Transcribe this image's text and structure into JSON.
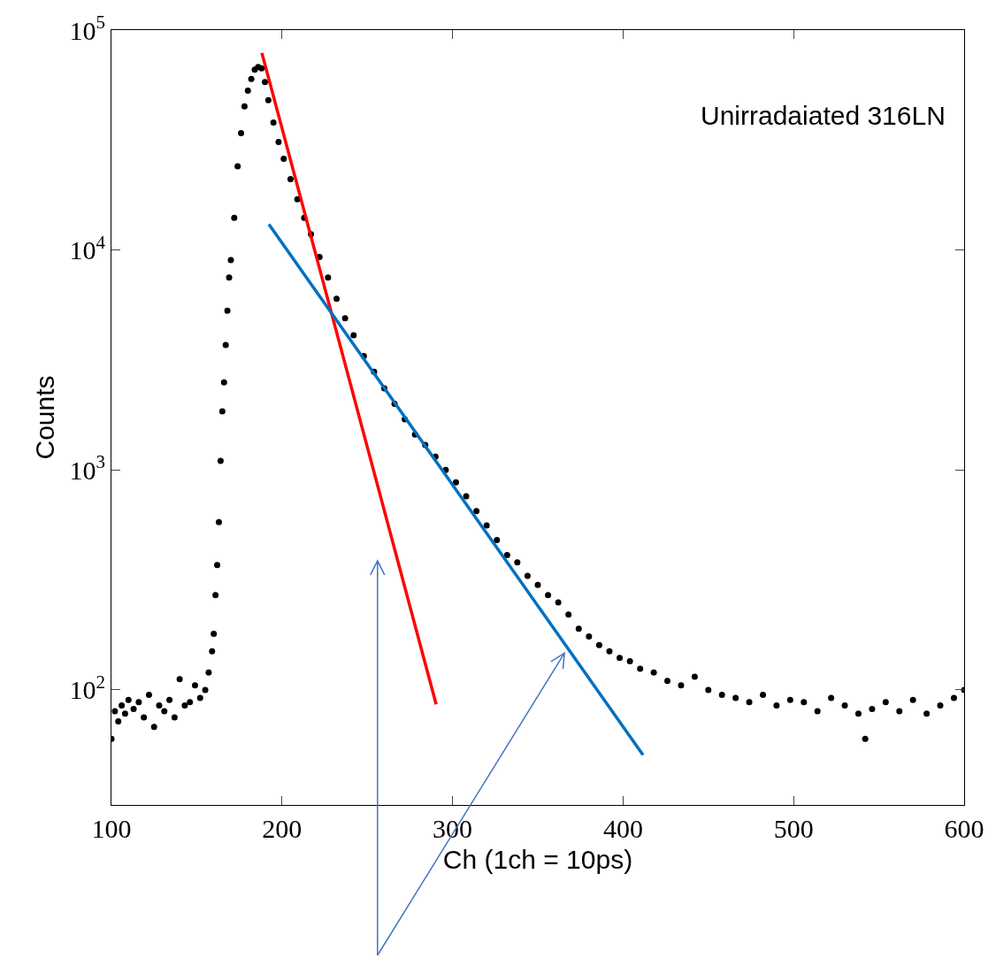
{
  "chart_data": {
    "type": "scatter",
    "xlabel": "Ch (1ch = 10ps)",
    "ylabel": "Counts",
    "log": "y",
    "grid": false,
    "xlim": [
      100,
      600
    ],
    "xticks": [
      100,
      200,
      300,
      400,
      500,
      600
    ],
    "ylim": [
      30,
      100000
    ],
    "yticks": [
      {
        "value": 100,
        "label": "10$^{2}$"
      },
      {
        "value": 1000,
        "label": "10$^{3}$"
      },
      {
        "value": 10000,
        "label": "10$^{4}$"
      },
      {
        "value": 100000,
        "label": "10$^{5}$"
      }
    ],
    "annotations": [
      "Unirradaiated 316LN"
    ],
    "series": [
      {
        "color": "#000000",
        "marker": "circle",
        "x": [
          100,
          102,
          104,
          106,
          108,
          110,
          113,
          116,
          119,
          122,
          125,
          128,
          131,
          134,
          137,
          140,
          143,
          146,
          149,
          152,
          155,
          157,
          159,
          160,
          161,
          162,
          163,
          164,
          165,
          166,
          167,
          168,
          169,
          170,
          172,
          174,
          176,
          178,
          180,
          182,
          184,
          186,
          188,
          190,
          192,
          195,
          198,
          201,
          205,
          209,
          213,
          217,
          222,
          227,
          232,
          237,
          242,
          248,
          254,
          260,
          266,
          272,
          278,
          284,
          290,
          296,
          302,
          308,
          314,
          320,
          326,
          332,
          338,
          344,
          350,
          356,
          362,
          368,
          374,
          380,
          386,
          392,
          398,
          404,
          410,
          418,
          426,
          434,
          442,
          450,
          458,
          466,
          474,
          482,
          490,
          498,
          506,
          514,
          522,
          530,
          538,
          542,
          546,
          554,
          562,
          570,
          578,
          586,
          594,
          600
        ],
        "values": [
          60,
          80,
          72,
          85,
          78,
          90,
          82,
          88,
          75,
          95,
          68,
          85,
          80,
          90,
          75,
          112,
          85,
          88,
          105,
          92,
          100,
          120,
          150,
          180,
          270,
          370,
          580,
          1100,
          1850,
          2500,
          3700,
          5300,
          7500,
          9000,
          14000,
          24000,
          34000,
          45000,
          53000,
          60000,
          66000,
          68000,
          67000,
          58000,
          48000,
          38000,
          31000,
          26000,
          21000,
          17000,
          14000,
          11800,
          9300,
          7500,
          6000,
          4900,
          4100,
          3300,
          2800,
          2350,
          2000,
          1700,
          1450,
          1300,
          1150,
          1000,
          880,
          760,
          650,
          560,
          480,
          410,
          380,
          330,
          300,
          270,
          250,
          220,
          190,
          175,
          160,
          150,
          140,
          135,
          125,
          120,
          110,
          105,
          115,
          100,
          95,
          92,
          88,
          95,
          85,
          90,
          88,
          80,
          92,
          85,
          78,
          60,
          82,
          88,
          80,
          90,
          78,
          85,
          92,
          100
        ]
      },
      {
        "type": "line",
        "color": "#ff0000",
        "line_style": "solid",
        "marker": "none",
        "x": [
          188.2,
          290.4
        ],
        "values": [
          78700,
          86
        ]
      },
      {
        "type": "line",
        "color": "#0070c0",
        "line_style": "solid",
        "marker": "none",
        "x": [
          192.3,
          411.7
        ],
        "values": [
          13100,
          50.6
        ]
      }
    ]
  }
}
